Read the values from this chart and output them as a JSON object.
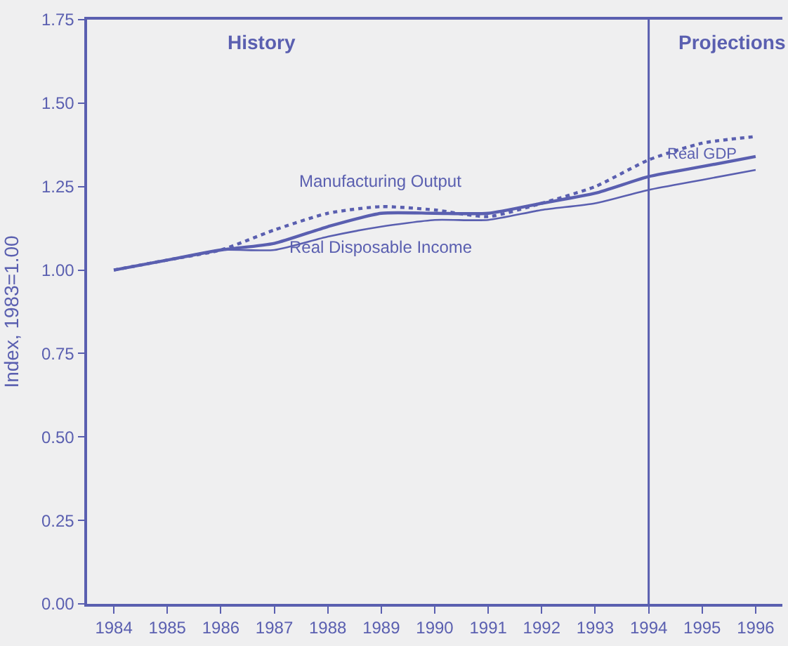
{
  "chart_data": {
    "type": "line",
    "ylabel": "Index, 1983=1.00",
    "x": [
      1984,
      1985,
      1986,
      1987,
      1988,
      1989,
      1990,
      1991,
      1992,
      1993,
      1994,
      1995,
      1996
    ],
    "series": [
      {
        "name": "Manufacturing Output",
        "color": "#5a5fb0",
        "line_style": "dotted",
        "values": [
          1.0,
          1.03,
          1.06,
          1.12,
          1.17,
          1.19,
          1.18,
          1.16,
          1.2,
          1.25,
          1.33,
          1.38,
          1.4
        ]
      },
      {
        "name": "Real GDP",
        "color": "#5a5fb0",
        "line_style": "solid",
        "values": [
          1.0,
          1.03,
          1.06,
          1.08,
          1.13,
          1.17,
          1.17,
          1.17,
          1.2,
          1.23,
          1.28,
          1.31,
          1.34
        ]
      },
      {
        "name": "Real Disposable Income",
        "color": "#5a5fb0",
        "line_style": "solid",
        "values": [
          1.0,
          1.03,
          1.06,
          1.06,
          1.1,
          1.13,
          1.15,
          1.15,
          1.18,
          1.2,
          1.24,
          1.27,
          1.3
        ]
      }
    ],
    "annotations": [
      "History",
      "Projections"
    ],
    "ref_lines": [
      {
        "axis": "x",
        "value": 1994,
        "color": "#5a5fb0"
      }
    ],
    "xlim": [
      1983.5,
      1996.5
    ],
    "xticks": [
      1984,
      1985,
      1986,
      1987,
      1988,
      1989,
      1990,
      1991,
      1992,
      1993,
      1994,
      1995,
      1996
    ],
    "ylim": [
      0,
      1.75
    ],
    "yticks": [
      {
        "value": 0,
        "label": "0.00"
      },
      {
        "value": 0.25,
        "label": "0.25"
      },
      {
        "value": 0.5,
        "label": "0.50"
      },
      {
        "value": 0.75,
        "label": "0.75"
      },
      {
        "value": 1,
        "label": "1.00"
      },
      {
        "value": 1.25,
        "label": "1.25"
      },
      {
        "value": 1.5,
        "label": "1.50"
      },
      {
        "value": 1.75,
        "label": "1.75"
      }
    ],
    "grid": false,
    "legend": false,
    "marker": "none"
  }
}
